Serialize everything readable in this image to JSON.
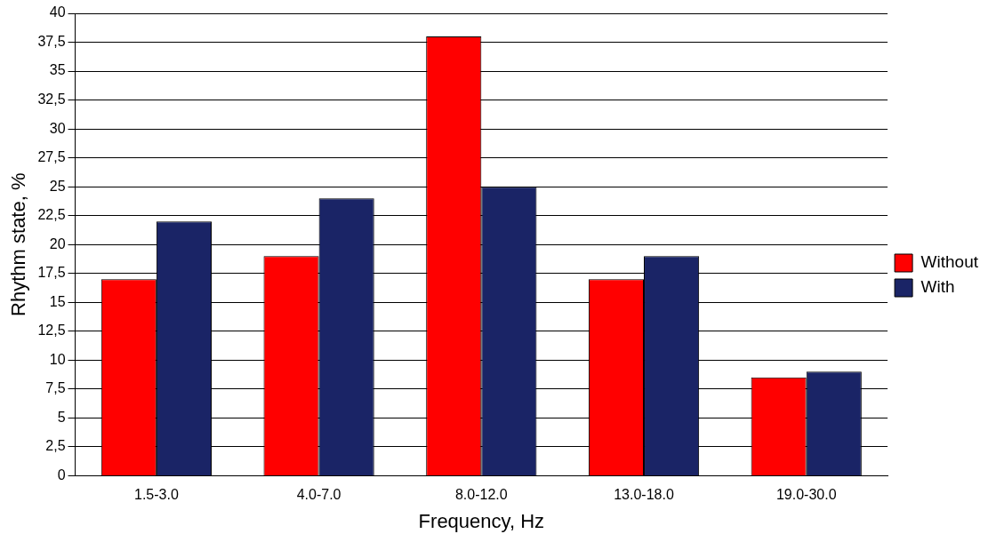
{
  "chart_data": {
    "type": "bar",
    "xlabel": "Frequency, Hz",
    "ylabel": "Rhythm state, %",
    "categories": [
      "1.5-3.0",
      "4.0-7.0",
      "8.0-12.0",
      "13.0-18.0",
      "19.0-30.0"
    ],
    "series": [
      {
        "name": "Without",
        "color": "#ff0000",
        "values": [
          17,
          19,
          38,
          17,
          8.5
        ]
      },
      {
        "name": "With",
        "color": "#1a2466",
        "values": [
          22,
          24,
          25,
          19,
          9
        ]
      }
    ],
    "ylim": [
      0,
      40
    ],
    "yticks": [
      0,
      {
        "value": 2.5,
        "label": "2,5"
      },
      5,
      {
        "value": 7.5,
        "label": "7,5"
      },
      10,
      {
        "value": 12.5,
        "label": "12,5"
      },
      15,
      {
        "value": 17.5,
        "label": "17,5"
      },
      20,
      {
        "value": 22.5,
        "label": "22,5"
      },
      25,
      {
        "value": 27.5,
        "label": "27,5"
      },
      30,
      {
        "value": 32.5,
        "label": "32,5"
      },
      35,
      {
        "value": 37.5,
        "label": "37,5"
      },
      40
    ],
    "grid": "y",
    "legend": "right"
  }
}
